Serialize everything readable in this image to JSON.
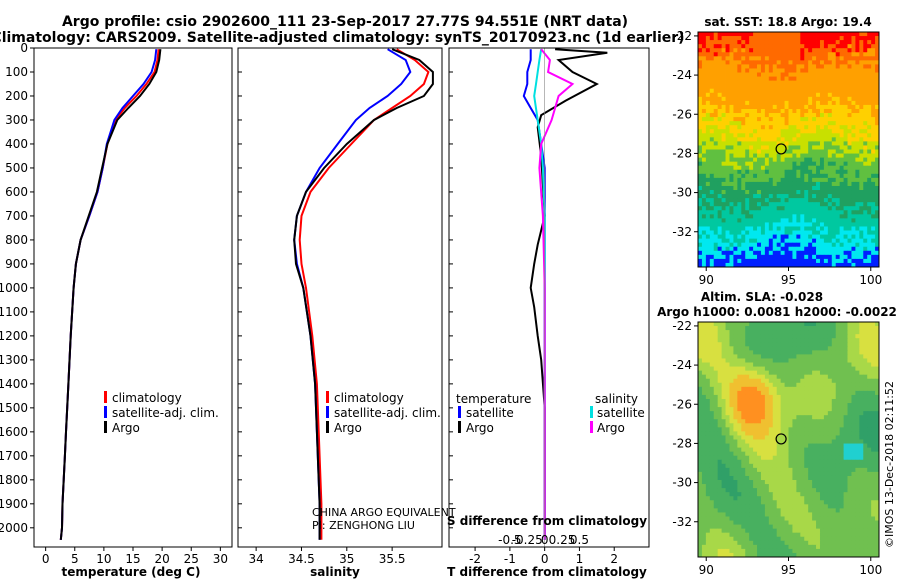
{
  "header": {
    "title_line1": "Argo profile: csio 2902600_111 23-Sep-2017 27.77S 94.551E (NRT data)",
    "title_line2": "Climatology: CARS2009. Satellite-adjusted climatology: synTS_20170923.nc (1d earlier)"
  },
  "colors": {
    "climatology": "#ff0000",
    "satellite": "#0000ff",
    "argo": "#000000",
    "sat_salinity": "#00e0e0",
    "argo_salinity": "#ff00ff"
  },
  "chart_data": [
    {
      "type": "line",
      "name": "temperature-panel",
      "xlabel": "temperature (deg C)",
      "ylabel": "",
      "xlim": [
        -2,
        32
      ],
      "ylim": [
        2080,
        0
      ],
      "xticks": [
        0,
        5,
        10,
        15,
        20,
        25,
        30
      ],
      "yticks": [
        0,
        100,
        200,
        300,
        400,
        500,
        600,
        700,
        800,
        900,
        1000,
        1100,
        1200,
        1300,
        1400,
        1500,
        1600,
        1700,
        1800,
        1900,
        2000
      ],
      "legend": [
        "climatology",
        "satellite-adj. clim.",
        "Argo"
      ],
      "series": [
        {
          "name": "climatology",
          "color": "#ff0000",
          "x": [
            19.4,
            19.2,
            18.7,
            17.3,
            15.6,
            13.6,
            12.0,
            10.6,
            9.8,
            8.9,
            7.5,
            6.0,
            5.2,
            4.8,
            4.3,
            3.9,
            3.7,
            3.5,
            3.3,
            3.1,
            2.9,
            2.8,
            2.6
          ],
          "depth": [
            5,
            50,
            100,
            150,
            200,
            250,
            300,
            400,
            500,
            600,
            700,
            800,
            900,
            1000,
            1200,
            1400,
            1500,
            1600,
            1700,
            1800,
            1900,
            2000,
            2050
          ]
        },
        {
          "name": "satellite-adj. clim.",
          "color": "#0000ff",
          "x": [
            19.0,
            18.8,
            18.2,
            16.8,
            15.0,
            13.2,
            11.8,
            10.5,
            9.8,
            8.9,
            7.5,
            6.0,
            5.2,
            4.8,
            4.3,
            3.9,
            3.7,
            3.5,
            3.3,
            3.1,
            2.9,
            2.8,
            2.6
          ],
          "depth": [
            5,
            50,
            100,
            150,
            200,
            250,
            300,
            400,
            500,
            600,
            700,
            800,
            900,
            1000,
            1200,
            1400,
            1500,
            1600,
            1700,
            1800,
            1900,
            2000,
            2050
          ]
        },
        {
          "name": "Argo",
          "color": "#000000",
          "x": [
            19.7,
            19.5,
            19.0,
            17.8,
            16.2,
            14.2,
            12.3,
            10.6,
            9.7,
            8.8,
            7.4,
            6.0,
            5.2,
            4.8,
            4.3,
            3.9,
            3.7,
            3.5,
            3.3,
            3.1,
            2.9,
            2.8,
            2.6
          ],
          "depth": [
            5,
            50,
            100,
            150,
            200,
            250,
            300,
            400,
            500,
            600,
            700,
            800,
            900,
            1000,
            1200,
            1400,
            1500,
            1600,
            1700,
            1800,
            1900,
            2000,
            2050
          ]
        }
      ]
    },
    {
      "type": "line",
      "name": "salinity-panel",
      "xlabel": "salinity",
      "ylabel": "",
      "xlim": [
        33.8,
        36.05
      ],
      "ylim": [
        2080,
        0
      ],
      "xticks": [
        34,
        34.5,
        35,
        35.5
      ],
      "xticklabels": [
        "34",
        "34.5",
        "35",
        "35.5"
      ],
      "legend": [
        "climatology",
        "satellite-adj. clim.",
        "Argo"
      ],
      "annotation": [
        "CHINA ARGO EQUIVALENT",
        "PI: ZENGHONG LIU"
      ],
      "series": [
        {
          "name": "climatology",
          "color": "#ff0000",
          "x": [
            35.55,
            35.75,
            35.9,
            35.85,
            35.7,
            35.5,
            35.3,
            35.05,
            34.8,
            34.6,
            34.5,
            34.48,
            34.5,
            34.55,
            34.62,
            34.67,
            34.69,
            34.7,
            34.71,
            34.72,
            34.72,
            34.72
          ],
          "depth": [
            5,
            50,
            100,
            150,
            200,
            250,
            300,
            400,
            500,
            600,
            700,
            800,
            900,
            1000,
            1200,
            1400,
            1600,
            1700,
            1800,
            1900,
            2000,
            2050
          ]
        },
        {
          "name": "satellite-adj. clim.",
          "color": "#0000ff",
          "x": [
            35.45,
            35.65,
            35.7,
            35.6,
            35.45,
            35.25,
            35.1,
            34.9,
            34.7,
            34.55,
            34.45,
            34.42,
            34.45,
            34.52,
            34.6,
            34.65,
            34.67,
            34.68,
            34.69,
            34.7,
            34.7,
            34.7
          ],
          "depth": [
            5,
            50,
            100,
            150,
            200,
            250,
            300,
            400,
            500,
            600,
            700,
            800,
            900,
            1000,
            1200,
            1400,
            1600,
            1700,
            1800,
            1900,
            2000,
            2050
          ]
        },
        {
          "name": "Argo",
          "color": "#000000",
          "x": [
            35.5,
            35.8,
            35.95,
            35.95,
            35.85,
            35.55,
            35.3,
            35.0,
            34.75,
            34.55,
            34.45,
            34.42,
            34.44,
            34.52,
            34.6,
            34.65,
            34.67,
            34.68,
            34.69,
            34.7,
            34.7,
            34.7
          ],
          "depth": [
            5,
            50,
            100,
            150,
            200,
            250,
            300,
            400,
            500,
            600,
            700,
            800,
            900,
            1000,
            1200,
            1400,
            1600,
            1700,
            1800,
            1900,
            2000,
            2050
          ]
        }
      ]
    },
    {
      "type": "line",
      "name": "difference-panel",
      "xlabel": "T difference from climatology",
      "x2label": "S difference from climatology",
      "xlim": [
        -2.75,
        3.0
      ],
      "ylim": [
        2080,
        0
      ],
      "xticks": [
        -2,
        -1,
        0,
        1,
        2
      ],
      "xticklabels": [
        "-2",
        "-1",
        "0",
        "1",
        "2"
      ],
      "x2ticks": [
        -1.0,
        -0.5,
        0,
        0.5,
        1.0
      ],
      "x2ticklabels": [
        "-0.5",
        "-0.25",
        "0",
        "0.25",
        "0.5"
      ],
      "legend_left_title": "temperature",
      "legend_left": [
        "satellite",
        "Argo"
      ],
      "legend_right_title": "salinity",
      "legend_right": [
        "satellite",
        "Argo"
      ],
      "series": [
        {
          "name": "temperature satellite",
          "color": "#0000ff",
          "x": [
            -0.4,
            -0.4,
            -0.5,
            -0.5,
            -0.6,
            -0.4,
            -0.2,
            -0.1,
            0,
            0,
            0,
            0,
            0,
            0,
            0,
            0
          ],
          "depth": [
            5,
            50,
            100,
            150,
            200,
            250,
            300,
            400,
            500,
            700,
            900,
            1100,
            1300,
            1500,
            1800,
            2050
          ]
        },
        {
          "name": "temperature Argo",
          "color": "#000000",
          "x": [
            0.3,
            1.8,
            0.4,
            0.8,
            1.5,
            0.6,
            -0.1,
            -0.2,
            -0.1,
            0,
            -0.2,
            -0.3,
            -0.4,
            -0.3,
            -0.2,
            -0.1,
            0,
            0,
            0
          ],
          "depth": [
            5,
            20,
            50,
            100,
            150,
            220,
            280,
            330,
            450,
            700,
            820,
            900,
            1000,
            1080,
            1200,
            1300,
            1500,
            1800,
            2050
          ]
        },
        {
          "name": "salinity satellite",
          "color": "#00e0e0",
          "x": [
            -0.1,
            -0.15,
            -0.2,
            -0.25,
            -0.3,
            -0.2,
            -0.1,
            -0.05,
            0,
            0,
            0,
            0
          ],
          "depth": [
            5,
            50,
            100,
            150,
            200,
            300,
            400,
            500,
            700,
            1000,
            1500,
            2050
          ]
        },
        {
          "name": "salinity Argo",
          "color": "#ff00ff",
          "x": [
            -0.1,
            0.15,
            0.1,
            0.8,
            0.4,
            0.2,
            -0.1,
            -0.15,
            -0.05,
            0,
            0,
            0
          ],
          "depth": [
            5,
            50,
            100,
            150,
            200,
            300,
            400,
            500,
            700,
            1000,
            1500,
            2050
          ]
        }
      ]
    },
    {
      "type": "heatmap",
      "name": "sst-map",
      "title": "sat. SST: 18.8 Argo: 19.4",
      "xlim": [
        89.5,
        100.5
      ],
      "ylim": [
        -33.8,
        -21.8
      ],
      "xticks": [
        90,
        95,
        100
      ],
      "yticks": [
        -22,
        -24,
        -26,
        -28,
        -30,
        -32
      ],
      "marker": {
        "lon": 94.551,
        "lat": -27.77
      }
    },
    {
      "type": "heatmap",
      "name": "sla-map",
      "title": "Altim. SLA: -0.028",
      "subtitle": "Argo h1000: 0.0081 h2000: -0.0022",
      "xlim": [
        89.5,
        100.5
      ],
      "ylim": [
        -33.8,
        -21.8
      ],
      "xticks": [
        90,
        95,
        100
      ],
      "yticks": [
        -22,
        -24,
        -26,
        -28,
        -30,
        -32
      ],
      "marker": {
        "lon": 94.551,
        "lat": -27.77
      }
    }
  ],
  "credit": "©IMOS 13-Dec-2018 02:11:52"
}
